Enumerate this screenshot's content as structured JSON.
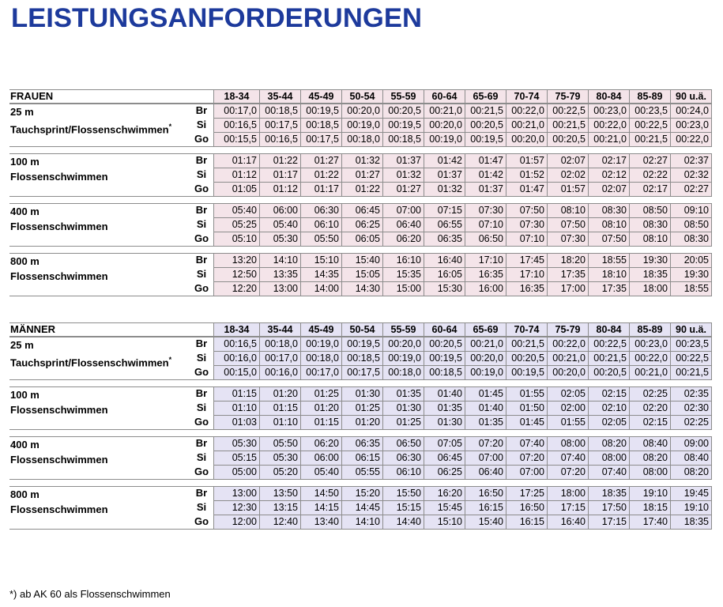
{
  "title": "LEISTUNGSANFORDERUNGEN",
  "tables": [
    {
      "heading": "FRAUEN",
      "age_groups": [
        "18-34",
        "35-44",
        "45-49",
        "50-54",
        "55-59",
        "60-64",
        "65-69",
        "70-74",
        "75-79",
        "80-84",
        "85-89",
        "90 u.ä."
      ],
      "disciplines": [
        {
          "label_lines": [
            "25 m",
            "Tauchsprint/Flossenschwimmen"
          ],
          "note_mark": "*",
          "levels": [
            "Br",
            "Si",
            "Go"
          ],
          "rows": [
            [
              "00:17,0",
              "00:18,5",
              "00:19,5",
              "00:20,0",
              "00:20,5",
              "00:21,0",
              "00:21,5",
              "00:22,0",
              "00:22,5",
              "00:23,0",
              "00:23,5",
              "00:24,0"
            ],
            [
              "00:16,5",
              "00:17,5",
              "00:18,5",
              "00:19,0",
              "00:19,5",
              "00:20,0",
              "00:20,5",
              "00:21,0",
              "00:21,5",
              "00:22,0",
              "00:22,5",
              "00:23,0"
            ],
            [
              "00:15,5",
              "00:16,5",
              "00:17,5",
              "00:18,0",
              "00:18,5",
              "00:19,0",
              "00:19,5",
              "00:20,0",
              "00:20,5",
              "00:21,0",
              "00:21,5",
              "00:22,0"
            ]
          ]
        },
        {
          "label_lines": [
            "100 m",
            "Flossenschwimmen"
          ],
          "levels": [
            "Br",
            "Si",
            "Go"
          ],
          "rows": [
            [
              "01:17",
              "01:22",
              "01:27",
              "01:32",
              "01:37",
              "01:42",
              "01:47",
              "01:57",
              "02:07",
              "02:17",
              "02:27",
              "02:37"
            ],
            [
              "01:12",
              "01:17",
              "01:22",
              "01:27",
              "01:32",
              "01:37",
              "01:42",
              "01:52",
              "02:02",
              "02:12",
              "02:22",
              "02:32"
            ],
            [
              "01:05",
              "01:12",
              "01:17",
              "01:22",
              "01:27",
              "01:32",
              "01:37",
              "01:47",
              "01:57",
              "02:07",
              "02:17",
              "02:27"
            ]
          ]
        },
        {
          "label_lines": [
            "400 m",
            "Flossenschwimmen"
          ],
          "levels": [
            "Br",
            "Si",
            "Go"
          ],
          "rows": [
            [
              "05:40",
              "06:00",
              "06:30",
              "06:45",
              "07:00",
              "07:15",
              "07:30",
              "07:50",
              "08:10",
              "08:30",
              "08:50",
              "09:10"
            ],
            [
              "05:25",
              "05:40",
              "06:10",
              "06:25",
              "06:40",
              "06:55",
              "07:10",
              "07:30",
              "07:50",
              "08:10",
              "08:30",
              "08:50"
            ],
            [
              "05:10",
              "05:30",
              "05:50",
              "06:05",
              "06:20",
              "06:35",
              "06:50",
              "07:10",
              "07:30",
              "07:50",
              "08:10",
              "08:30"
            ]
          ]
        },
        {
          "label_lines": [
            "800 m",
            "Flossenschwimmen"
          ],
          "levels": [
            "Br",
            "Si",
            "Go"
          ],
          "rows": [
            [
              "13:20",
              "14:10",
              "15:10",
              "15:40",
              "16:10",
              "16:40",
              "17:10",
              "17:45",
              "18:20",
              "18:55",
              "19:30",
              "20:05"
            ],
            [
              "12:50",
              "13:35",
              "14:35",
              "15:05",
              "15:35",
              "16:05",
              "16:35",
              "17:10",
              "17:35",
              "18:10",
              "18:35",
              "19:30"
            ],
            [
              "12:20",
              "13:00",
              "14:00",
              "14:30",
              "15:00",
              "15:30",
              "16:00",
              "16:35",
              "17:00",
              "17:35",
              "18:00",
              "18:55"
            ]
          ]
        }
      ]
    },
    {
      "heading": "MÄNNER",
      "age_groups": [
        "18-34",
        "35-44",
        "45-49",
        "50-54",
        "55-59",
        "60-64",
        "65-69",
        "70-74",
        "75-79",
        "80-84",
        "85-89",
        "90 u.ä."
      ],
      "disciplines": [
        {
          "label_lines": [
            "25 m",
            "Tauchsprint/Flossenschwimmen"
          ],
          "note_mark": "*",
          "levels": [
            "Br",
            "Si",
            "Go"
          ],
          "rows": [
            [
              "00:16,5",
              "00:18,0",
              "00:19,0",
              "00:19,5",
              "00:20,0",
              "00:20,5",
              "00:21,0",
              "00:21,5",
              "00:22,0",
              "00:22,5",
              "00:23,0",
              "00:23,5"
            ],
            [
              "00:16,0",
              "00:17,0",
              "00:18,0",
              "00:18,5",
              "00:19,0",
              "00:19,5",
              "00:20,0",
              "00:20,5",
              "00:21,0",
              "00:21,5",
              "00:22,0",
              "00:22,5"
            ],
            [
              "00:15,0",
              "00:16,0",
              "00:17,0",
              "00:17,5",
              "00:18,0",
              "00:18,5",
              "00:19,0",
              "00:19,5",
              "00:20,0",
              "00:20,5",
              "00:21,0",
              "00:21,5"
            ]
          ]
        },
        {
          "label_lines": [
            "100 m",
            "Flossenschwimmen"
          ],
          "levels": [
            "Br",
            "Si",
            "Go"
          ],
          "rows": [
            [
              "01:15",
              "01:20",
              "01:25",
              "01:30",
              "01:35",
              "01:40",
              "01:45",
              "01:55",
              "02:05",
              "02:15",
              "02:25",
              "02:35"
            ],
            [
              "01:10",
              "01:15",
              "01:20",
              "01:25",
              "01:30",
              "01:35",
              "01:40",
              "01:50",
              "02:00",
              "02:10",
              "02:20",
              "02:30"
            ],
            [
              "01:03",
              "01:10",
              "01:15",
              "01:20",
              "01:25",
              "01:30",
              "01:35",
              "01:45",
              "01:55",
              "02:05",
              "02:15",
              "02:25"
            ]
          ]
        },
        {
          "label_lines": [
            "400 m",
            "Flossenschwimmen"
          ],
          "levels": [
            "Br",
            "Si",
            "Go"
          ],
          "rows": [
            [
              "05:30",
              "05:50",
              "06:20",
              "06:35",
              "06:50",
              "07:05",
              "07:20",
              "07:40",
              "08:00",
              "08:20",
              "08:40",
              "09:00"
            ],
            [
              "05:15",
              "05:30",
              "06:00",
              "06:15",
              "06:30",
              "06:45",
              "07:00",
              "07:20",
              "07:40",
              "08:00",
              "08:20",
              "08:40"
            ],
            [
              "05:00",
              "05:20",
              "05:40",
              "05:55",
              "06:10",
              "06:25",
              "06:40",
              "07:00",
              "07:20",
              "07:40",
              "08:00",
              "08:20"
            ]
          ]
        },
        {
          "label_lines": [
            "800 m",
            "Flossenschwimmen"
          ],
          "levels": [
            "Br",
            "Si",
            "Go"
          ],
          "rows": [
            [
              "13:00",
              "13:50",
              "14:50",
              "15:20",
              "15:50",
              "16:20",
              "16:50",
              "17:25",
              "18:00",
              "18:35",
              "19:10",
              "19:45"
            ],
            [
              "12:30",
              "13:15",
              "14:15",
              "14:45",
              "15:15",
              "15:45",
              "16:15",
              "16:50",
              "17:15",
              "17:50",
              "18:15",
              "19:10"
            ],
            [
              "12:00",
              "12:40",
              "13:40",
              "14:10",
              "14:40",
              "15:10",
              "15:40",
              "16:15",
              "16:40",
              "17:15",
              "17:40",
              "18:35"
            ]
          ]
        }
      ]
    }
  ],
  "footnote": "*) ab AK 60 als Flossenschwimmen"
}
